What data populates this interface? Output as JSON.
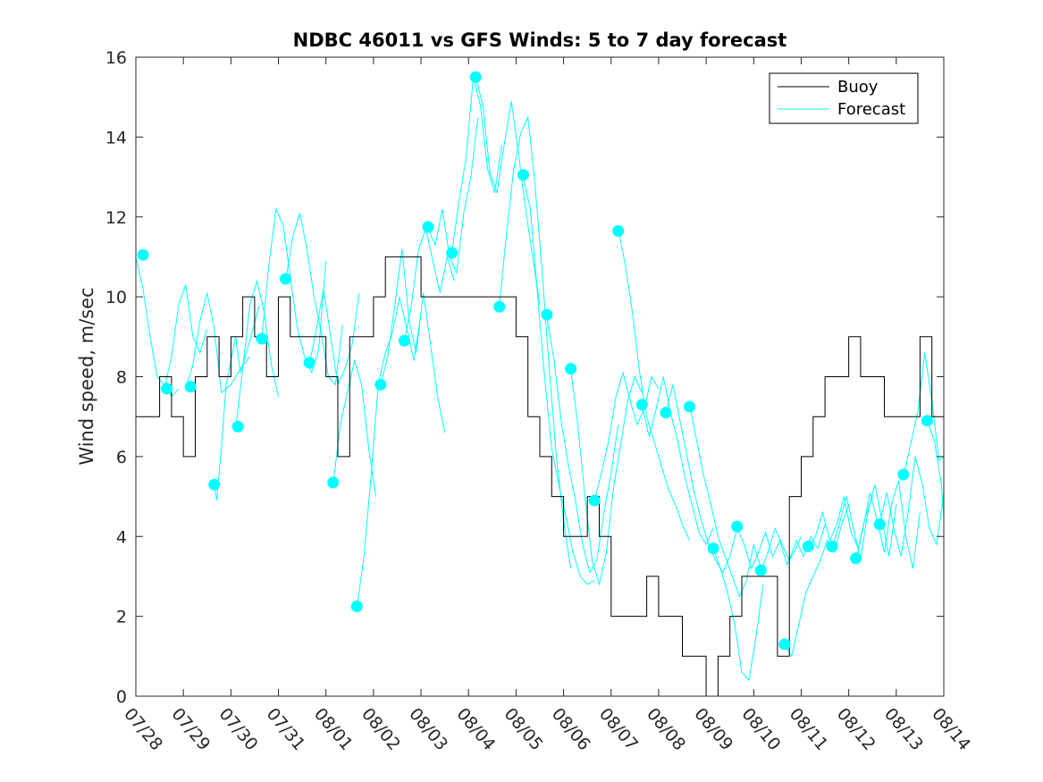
{
  "chart_data": {
    "type": "line",
    "title": "NDBC 46011 vs GFS Winds: 5 to 7 day forecast",
    "xlabel": "",
    "ylabel": "Wind speed, m/sec",
    "xlim": [
      0,
      17
    ],
    "ylim": [
      0,
      16
    ],
    "x_tick_labels": [
      "07/28",
      "07/29",
      "07/30",
      "07/31",
      "08/01",
      "08/02",
      "08/03",
      "08/04",
      "08/05",
      "08/06",
      "08/07",
      "08/08",
      "08/09",
      "08/10",
      "08/11",
      "08/12",
      "08/13",
      "08/14"
    ],
    "y_ticks": [
      0,
      2,
      4,
      6,
      8,
      10,
      12,
      14,
      16
    ],
    "grid": false,
    "legend_position": "top-right",
    "legend": [
      {
        "label": "Buoy",
        "color": "#000000"
      },
      {
        "label": "Forecast",
        "color": "#00ffff"
      }
    ],
    "series": [
      {
        "name": "Buoy",
        "color": "#000000",
        "style": "step",
        "x": [
          0,
          0.25,
          0.5,
          0.75,
          1.0,
          1.25,
          1.5,
          1.75,
          2.0,
          2.25,
          2.5,
          2.75,
          3.0,
          3.25,
          3.5,
          3.75,
          4.0,
          4.25,
          4.5,
          4.75,
          5.0,
          5.25,
          5.5,
          5.75,
          6.0,
          6.25,
          6.5,
          6.75,
          7.0,
          7.25,
          7.5,
          7.75,
          8.0,
          8.25,
          8.5,
          8.75,
          9.0,
          9.25,
          9.5,
          9.75,
          10.0,
          10.25,
          10.5,
          10.75,
          11.0,
          11.25,
          11.5,
          11.75,
          12.0,
          12.25,
          12.5,
          12.75,
          13.0,
          13.25,
          13.5,
          13.75,
          14.0,
          14.25,
          14.5,
          14.75,
          15.0,
          15.25,
          15.5,
          15.75,
          16.0,
          16.25,
          16.5,
          16.75,
          17.0
        ],
        "y": [
          7,
          7,
          8,
          7,
          6,
          8,
          9,
          8,
          9,
          10,
          9,
          8,
          10,
          9,
          9,
          9,
          8,
          6,
          9,
          9,
          10,
          11,
          11,
          11,
          10,
          10,
          10,
          10,
          10,
          10,
          10,
          10,
          9,
          7,
          6,
          5,
          4,
          4,
          5,
          4,
          2,
          2,
          2,
          3,
          2,
          2,
          1,
          1,
          0,
          1,
          2,
          3,
          3,
          3,
          1,
          5,
          6,
          7,
          8,
          8,
          9,
          8,
          8,
          7,
          7,
          7,
          9,
          7,
          7
        ]
      }
    ],
    "forecast_segments": [
      {
        "x": [
          0,
          0.15,
          0.3,
          0.45,
          0.6,
          0.75,
          0.9
        ],
        "y": [
          11.0,
          10.2,
          9.0,
          8.0,
          7.8,
          7.5,
          7.7
        ]
      },
      {
        "x": [
          0.6,
          0.75,
          0.9,
          1.05,
          1.2,
          1.35,
          1.5
        ],
        "y": [
          7.7,
          8.5,
          9.8,
          10.3,
          9.0,
          8.6,
          9.2
        ]
      },
      {
        "x": [
          1.05,
          1.2,
          1.35,
          1.5,
          1.65,
          1.8,
          2.0,
          2.2,
          2.4
        ],
        "y": [
          7.7,
          8.3,
          9.4,
          10.1,
          9.2,
          7.6,
          7.8,
          8.2,
          8.5
        ]
      },
      {
        "x": [
          1.65,
          1.7,
          1.8,
          1.9,
          2.0,
          2.1,
          2.2,
          2.4,
          2.6
        ],
        "y": [
          5.3,
          4.9,
          6.2,
          7.8,
          8.4,
          9.0,
          8.1,
          8.9,
          9.8
        ]
      },
      {
        "x": [
          2.1,
          2.25,
          2.4,
          2.55,
          2.7,
          2.85,
          3.0
        ],
        "y": [
          6.7,
          8.2,
          9.8,
          10.4,
          9.6,
          8.3,
          7.5
        ]
      },
      {
        "x": [
          2.65,
          2.8,
          2.95,
          3.1,
          3.25,
          3.4,
          3.55,
          3.7,
          3.85,
          4.0
        ],
        "y": [
          9.0,
          10.8,
          12.2,
          11.8,
          10.5,
          9.2,
          8.5,
          8.1,
          8.7,
          10.9
        ]
      },
      {
        "x": [
          3.15,
          3.3,
          3.45,
          3.6,
          3.75,
          3.9,
          4.05,
          4.2,
          4.35
        ],
        "y": [
          10.4,
          11.5,
          12.1,
          11.2,
          10.0,
          9.1,
          8.0,
          7.8,
          9.3
        ]
      },
      {
        "x": [
          3.65,
          3.8,
          3.95,
          4.1,
          4.25,
          4.4,
          4.55,
          4.7
        ],
        "y": [
          8.3,
          9.2,
          10.2,
          9.0,
          7.8,
          8.2,
          8.8,
          10.1
        ]
      },
      {
        "x": [
          4.15,
          4.3,
          4.45,
          4.6,
          4.75,
          4.9,
          5.05
        ],
        "y": [
          5.3,
          6.8,
          7.6,
          8.4,
          7.8,
          6.2,
          5.0
        ]
      },
      {
        "x": [
          4.65,
          4.8,
          4.95,
          5.1,
          5.25,
          5.4,
          5.55,
          5.7,
          5.85,
          6.0
        ],
        "y": [
          2.2,
          3.5,
          5.5,
          7.8,
          8.6,
          9.1,
          10.0,
          9.2,
          8.4,
          9.6
        ]
      },
      {
        "x": [
          5.15,
          5.3,
          5.45,
          5.6,
          5.75,
          5.9,
          6.05,
          6.2,
          6.35,
          6.5
        ],
        "y": [
          7.8,
          8.5,
          9.8,
          11.2,
          9.4,
          8.6,
          10.1,
          8.8,
          7.5,
          6.6
        ]
      },
      {
        "x": [
          5.65,
          5.8,
          5.95,
          6.1,
          6.25,
          6.4,
          6.55,
          6.7
        ],
        "y": [
          8.9,
          9.8,
          11.2,
          11.7,
          10.9,
          10.1,
          11.0,
          10.4
        ]
      },
      {
        "x": [
          6.15,
          6.3,
          6.45,
          6.6,
          6.75,
          6.9,
          7.05,
          7.2
        ],
        "y": [
          11.7,
          11.3,
          12.2,
          11.0,
          10.6,
          12.1,
          13.0,
          14.5
        ]
      },
      {
        "x": [
          6.65,
          6.8,
          6.95,
          7.1,
          7.25,
          7.4,
          7.55,
          7.7
        ],
        "y": [
          11.1,
          12.4,
          13.5,
          15.5,
          14.8,
          13.2,
          12.6,
          13.8
        ]
      },
      {
        "x": [
          7.15,
          7.3,
          7.45,
          7.6,
          7.75,
          7.9,
          8.05,
          8.2,
          8.35,
          8.5
        ],
        "y": [
          15.5,
          14.8,
          13.1,
          12.6,
          13.8,
          14.9,
          13.6,
          12.2,
          11.0,
          9.8
        ]
      },
      {
        "x": [
          7.65,
          7.8,
          7.95,
          8.1,
          8.25,
          8.4,
          8.55,
          8.7,
          8.85,
          9.0,
          9.15
        ],
        "y": [
          9.8,
          11.6,
          13.2,
          14.1,
          14.5,
          12.8,
          10.6,
          8.2,
          6.0,
          4.4,
          3.2
        ]
      },
      {
        "x": [
          8.15,
          8.3,
          8.45,
          8.6,
          8.75,
          8.9,
          9.05,
          9.2,
          9.35,
          9.5,
          9.65
        ],
        "y": [
          13.0,
          12.2,
          10.1,
          8.0,
          6.2,
          5.3,
          4.5,
          3.6,
          3.0,
          2.8,
          2.9
        ]
      },
      {
        "x": [
          8.65,
          8.8,
          8.95,
          9.1,
          9.25,
          9.4,
          9.55,
          9.7,
          9.85,
          10.0,
          10.15
        ],
        "y": [
          9.5,
          8.4,
          6.9,
          5.8,
          4.9,
          3.8,
          3.1,
          3.4,
          4.6,
          5.6,
          6.8
        ]
      },
      {
        "x": [
          9.15,
          9.3,
          9.45,
          9.6,
          9.75,
          9.9,
          10.05,
          10.2,
          10.35,
          10.5,
          10.65
        ],
        "y": [
          8.2,
          6.8,
          5.0,
          3.4,
          2.8,
          3.6,
          5.2,
          6.3,
          7.4,
          8.0,
          7.6
        ]
      },
      {
        "x": [
          9.65,
          9.8,
          9.95,
          10.1,
          10.25,
          10.4,
          10.55,
          10.7,
          10.85,
          11.0
        ],
        "y": [
          4.9,
          5.6,
          6.4,
          7.5,
          8.1,
          7.4,
          6.8,
          7.2,
          8.0,
          7.7
        ]
      },
      {
        "x": [
          10.15,
          10.3,
          10.45,
          10.6,
          10.75,
          10.9,
          11.05,
          11.2,
          11.35,
          11.5,
          11.65
        ],
        "y": [
          11.7,
          10.8,
          9.6,
          8.1,
          7.0,
          6.4,
          5.8,
          5.2,
          4.8,
          4.3,
          3.9
        ]
      },
      {
        "x": [
          10.65,
          10.8,
          10.95,
          11.1,
          11.25,
          11.4,
          11.55,
          11.7,
          11.85,
          12.0,
          12.15
        ],
        "y": [
          7.3,
          6.5,
          7.2,
          8.0,
          7.1,
          6.4,
          5.5,
          4.8,
          4.1,
          3.8,
          4.2
        ]
      },
      {
        "x": [
          11.15,
          11.3,
          11.45,
          11.6,
          11.75,
          11.9,
          12.05,
          12.2,
          12.35,
          12.5,
          12.65
        ],
        "y": [
          7.1,
          7.8,
          6.9,
          6.0,
          5.1,
          4.4,
          3.8,
          3.4,
          3.1,
          3.5,
          4.2
        ]
      },
      {
        "x": [
          11.65,
          11.8,
          11.95,
          12.1,
          12.25,
          12.4,
          12.55,
          12.7,
          12.85,
          13.0,
          13.15
        ],
        "y": [
          7.3,
          6.4,
          5.5,
          4.8,
          4.0,
          3.5,
          3.0,
          2.5,
          2.9,
          3.8,
          3.2
        ]
      },
      {
        "x": [
          12.15,
          12.3,
          12.45,
          12.6,
          12.75,
          12.9,
          13.05,
          13.2
        ],
        "y": [
          3.7,
          3.2,
          2.6,
          1.8,
          0.6,
          0.4,
          1.5,
          2.8
        ]
      },
      {
        "x": [
          12.65,
          12.8,
          12.95,
          13.1,
          13.25,
          13.4,
          13.55,
          13.7,
          13.85,
          14.0
        ],
        "y": [
          4.2,
          3.8,
          3.2,
          3.6,
          4.1,
          3.5,
          3.9,
          3.3,
          3.6,
          4.0
        ]
      },
      {
        "x": [
          13.15,
          13.3,
          13.45,
          13.6,
          13.75,
          13.9,
          14.05,
          14.2,
          14.35,
          14.5
        ],
        "y": [
          3.1,
          3.6,
          4.2,
          3.8,
          3.4,
          3.9,
          3.5,
          4.0,
          3.7,
          4.3
        ]
      },
      {
        "x": [
          13.65,
          13.8,
          13.95,
          14.1,
          14.25,
          14.4,
          14.55,
          14.7,
          14.85,
          15.0
        ],
        "y": [
          1.3,
          1.0,
          1.8,
          2.6,
          3.0,
          3.4,
          3.9,
          3.6,
          4.3,
          4.8
        ]
      },
      {
        "x": [
          14.15,
          14.3,
          14.45,
          14.6,
          14.75,
          14.9,
          15.05,
          15.2,
          15.35,
          15.5
        ],
        "y": [
          3.7,
          4.0,
          4.6,
          3.9,
          4.3,
          5.0,
          4.1,
          3.7,
          4.5,
          5.0
        ]
      },
      {
        "x": [
          14.65,
          14.8,
          14.95,
          15.1,
          15.25,
          15.4,
          15.55,
          15.7,
          15.85,
          16.0
        ],
        "y": [
          3.7,
          4.3,
          5.0,
          4.2,
          3.4,
          4.6,
          5.3,
          4.4,
          3.5,
          4.8
        ]
      },
      {
        "x": [
          15.15,
          15.3,
          15.45,
          15.6,
          15.75,
          15.9,
          16.05,
          16.2,
          16.35,
          16.5
        ],
        "y": [
          3.4,
          4.2,
          5.1,
          4.4,
          3.6,
          4.8,
          5.4,
          4.0,
          3.2,
          4.6
        ]
      },
      {
        "x": [
          15.65,
          15.8,
          15.95,
          16.1,
          16.25,
          16.4,
          16.55,
          16.7,
          16.85,
          17.0
        ],
        "y": [
          4.3,
          5.1,
          4.2,
          3.5,
          4.6,
          6.0,
          5.3,
          4.2,
          3.8,
          5.1
        ]
      },
      {
        "x": [
          16.15,
          16.3,
          16.45,
          16.6,
          16.75,
          16.9,
          17.0
        ],
        "y": [
          5.5,
          6.3,
          7.1,
          8.6,
          7.4,
          5.9,
          6.0
        ]
      },
      {
        "x": [
          16.65,
          16.8,
          16.95,
          17.0
        ],
        "y": [
          6.9,
          6.4,
          5.3,
          4.5
        ]
      }
    ],
    "forecast_markers": {
      "x": [
        0.15,
        0.65,
        1.15,
        1.65,
        2.15,
        2.65,
        3.15,
        3.65,
        4.15,
        4.65,
        5.15,
        5.65,
        6.15,
        6.65,
        7.15,
        7.65,
        8.15,
        8.65,
        9.15,
        9.65,
        10.15,
        10.65,
        11.15,
        11.65,
        12.15,
        12.65,
        13.15,
        13.65,
        14.15,
        14.65,
        15.15,
        15.65,
        16.15,
        16.65
      ],
      "y": [
        11.05,
        7.7,
        7.75,
        5.3,
        6.75,
        8.95,
        10.45,
        8.35,
        5.35,
        2.25,
        7.8,
        8.9,
        11.75,
        11.1,
        15.5,
        9.75,
        13.05,
        9.55,
        8.2,
        4.9,
        11.65,
        7.3,
        7.1,
        7.25,
        3.7,
        4.25,
        3.15,
        1.3,
        3.75,
        3.75,
        3.45,
        4.3,
        5.55,
        6.9
      ]
    }
  }
}
